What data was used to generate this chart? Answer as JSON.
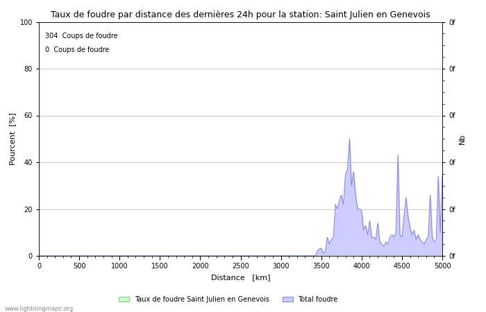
{
  "title": "Taux de foudre par distance des dernières 24h pour la station: Saint Julien en Genevois",
  "xlabel": "Distance   [km]",
  "ylabel_left": "Pourcent  [%]",
  "ylabel_right": "Nb",
  "annotation_line1": "304  Coups de foudre",
  "annotation_line2": "0  Coups de foudre",
  "xlim": [
    0,
    5000
  ],
  "ylim_left": [
    0,
    100
  ],
  "xticks": [
    0,
    500,
    1000,
    1500,
    2000,
    2500,
    3000,
    3500,
    4000,
    4500,
    5000
  ],
  "yticks_left": [
    0,
    20,
    40,
    60,
    80,
    100
  ],
  "yticks_right_labels": [
    "0f",
    "0f",
    "0f",
    "0f",
    "0f",
    "0f"
  ],
  "legend_label_green": "Taux de foudre Saint Julien en Genevois",
  "legend_label_blue": "Total foudre",
  "watermark": "www.lightningmaps.org",
  "bg_color": "#ffffff",
  "grid_color": "#bbbbbb",
  "blue_fill_color": "#ccccff",
  "blue_line_color": "#8888cc",
  "green_fill_color": "#ccffcc",
  "green_line_color": "#88cc88",
  "title_fontsize": 9,
  "label_fontsize": 8,
  "tick_fontsize": 7,
  "annot_fontsize": 7
}
